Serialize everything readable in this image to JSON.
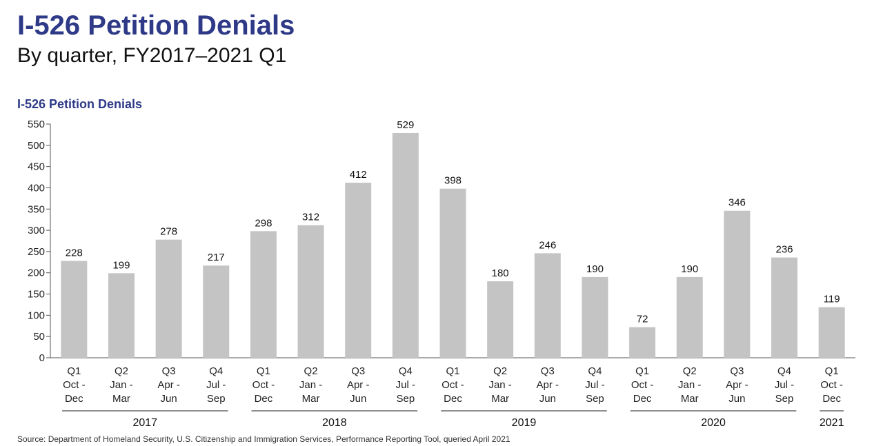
{
  "title": "I-526 Petition Denials",
  "subtitle": "By quarter, FY2017–2021 Q1",
  "source": "Source: Department of Homeland Security, U.S. Citizenship and Immigration Services, Performance Reporting Tool, queried April 2021",
  "chart_data": {
    "type": "bar",
    "title": "I-526 Petition Denials",
    "xlabel": "",
    "ylabel": "",
    "ylim": [
      0,
      550
    ],
    "yticks": [
      0,
      50,
      100,
      150,
      200,
      250,
      300,
      350,
      400,
      450,
      500,
      550
    ],
    "grid": false,
    "bar_color": "#c4c4c4",
    "categories": [
      {
        "q": "Q1",
        "months": "Oct -",
        "months2": "Dec"
      },
      {
        "q": "Q2",
        "months": "Jan -",
        "months2": "Mar"
      },
      {
        "q": "Q3",
        "months": "Apr -",
        "months2": "Jun"
      },
      {
        "q": "Q4",
        "months": "Jul -",
        "months2": "Sep"
      },
      {
        "q": "Q1",
        "months": "Oct -",
        "months2": "Dec"
      },
      {
        "q": "Q2",
        "months": "Jan -",
        "months2": "Mar"
      },
      {
        "q": "Q3",
        "months": "Apr -",
        "months2": "Jun"
      },
      {
        "q": "Q4",
        "months": "Jul -",
        "months2": "Sep"
      },
      {
        "q": "Q1",
        "months": "Oct -",
        "months2": "Dec"
      },
      {
        "q": "Q2",
        "months": "Jan -",
        "months2": "Mar"
      },
      {
        "q": "Q3",
        "months": "Apr -",
        "months2": "Jun"
      },
      {
        "q": "Q4",
        "months": "Jul -",
        "months2": "Sep"
      },
      {
        "q": "Q1",
        "months": "Oct -",
        "months2": "Dec"
      },
      {
        "q": "Q2",
        "months": "Jan -",
        "months2": "Mar"
      },
      {
        "q": "Q3",
        "months": "Apr -",
        "months2": "Jun"
      },
      {
        "q": "Q4",
        "months": "Jul -",
        "months2": "Sep"
      },
      {
        "q": "Q1",
        "months": "Oct -",
        "months2": "Dec"
      }
    ],
    "values": [
      228,
      199,
      278,
      217,
      298,
      312,
      412,
      529,
      398,
      180,
      246,
      190,
      72,
      190,
      346,
      236,
      119
    ],
    "year_groups": [
      {
        "label": "2017",
        "count": 4
      },
      {
        "label": "2018",
        "count": 4
      },
      {
        "label": "2019",
        "count": 4
      },
      {
        "label": "2020",
        "count": 4
      },
      {
        "label": "2021",
        "count": 1
      }
    ]
  }
}
